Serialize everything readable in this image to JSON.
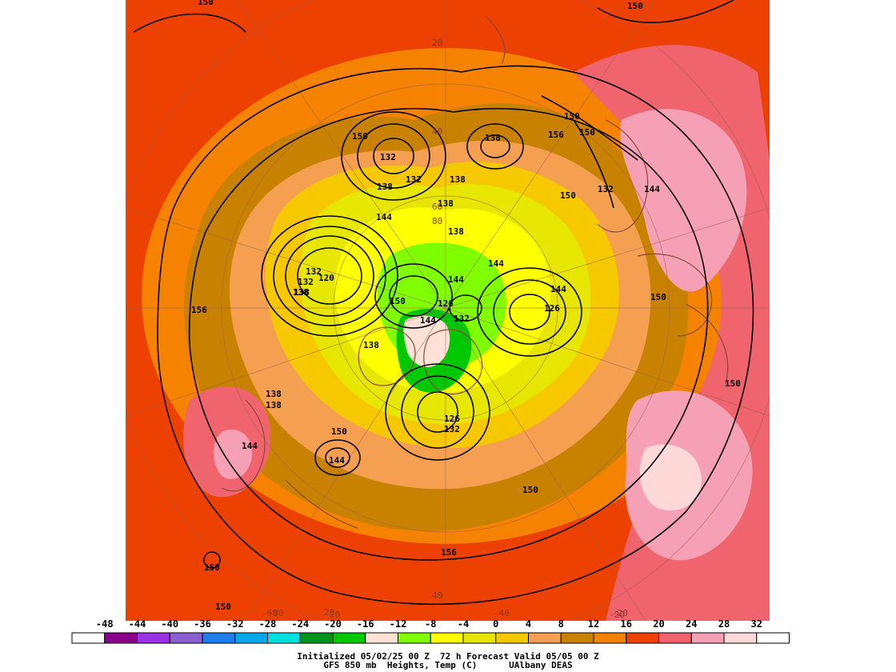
{
  "map": {
    "contour_labels": [
      "150",
      "150",
      "150",
      "150",
      "156",
      "150",
      "150",
      "144",
      "138",
      "138",
      "132",
      "132",
      "138",
      "138",
      "138",
      "144",
      "138",
      "144",
      "144",
      "156",
      "132",
      "132",
      "120",
      "138",
      "150",
      "126",
      "132",
      "144",
      "126",
      "144",
      "138",
      "150",
      "138",
      "138",
      "126",
      "132",
      "144",
      "144",
      "150",
      "150",
      "150",
      "156",
      "150",
      "150",
      "132"
    ],
    "grid_labels": [
      "20",
      "40",
      "60",
      "80",
      "40",
      "20",
      "-20",
      "-40",
      "-60",
      "-80",
      "-20",
      "20"
    ]
  },
  "legend": {
    "ticks": [
      "-48",
      "-44",
      "-40",
      "-36",
      "-32",
      "-28",
      "-24",
      "-20",
      "-16",
      "-12",
      "-8",
      "-4",
      "0",
      "4",
      "8",
      "12",
      "16",
      "20",
      "24",
      "28",
      "32"
    ],
    "colors": [
      "#ffffff",
      "#8b008b",
      "#9a32e6",
      "#8a60d0",
      "#1e7de8",
      "#05a8e8",
      "#00e0e0",
      "#00951a",
      "#00c800",
      "#ffe1d8",
      "#80ff00",
      "#ffff00",
      "#e6e600",
      "#f5c800",
      "#f5a050",
      "#c88200",
      "#f58200",
      "#ec4100",
      "#f0646e",
      "#f5a0b4",
      "#ffd8d8",
      "#ffffff"
    ]
  },
  "caption": {
    "line1": "Initialized 05/02/25 00 Z  72 h Forecast Valid 05/05 00 Z",
    "line2": "GFS 850 mb  Heights, Temp (C)      UAlbany DEAS"
  }
}
